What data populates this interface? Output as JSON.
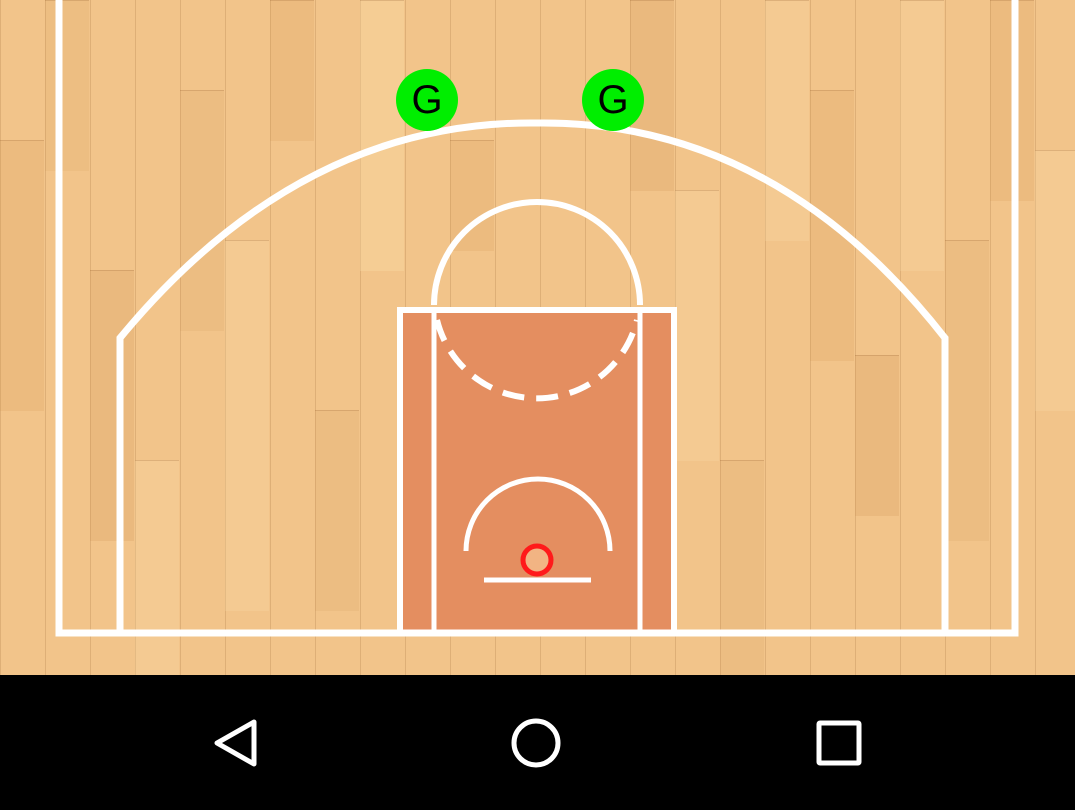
{
  "court": {
    "floor_color": "#f2c48a",
    "paint_color": "#e48e60",
    "line_color": "#ffffff",
    "rim_color": "#ff1a1a"
  },
  "players": [
    {
      "label": "G",
      "color": "#00ee00"
    },
    {
      "label": "G",
      "color": "#00ee00"
    }
  ],
  "navbar": {
    "back_icon": "back-triangle-icon",
    "home_icon": "home-circle-icon",
    "recents_icon": "recents-square-icon"
  }
}
